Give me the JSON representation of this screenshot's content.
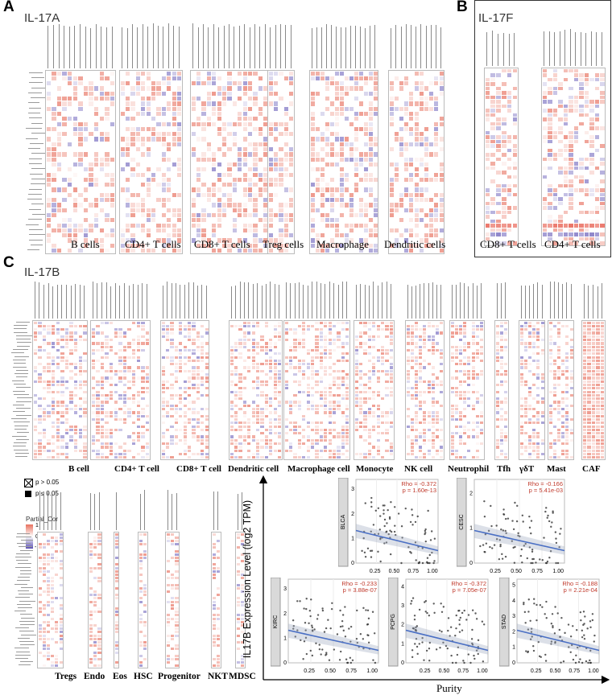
{
  "panels": {
    "A": {
      "letter": "A",
      "title": "IL-17A",
      "groups": [
        "B cells",
        "CD4+ T cells",
        "CD8+ T cells",
        "Treg cells",
        "Macrophage",
        "Dendritic cells"
      ]
    },
    "B": {
      "letter": "B",
      "title": "IL-17F",
      "groups": [
        "CD8+ T cells",
        "CD4+ T cells"
      ]
    },
    "C": {
      "letter": "C",
      "title": "IL-17B",
      "groups_top": [
        "B cell",
        "CD4+ T cell",
        "CD8+ T cell",
        "Dendritic cell",
        "Macrophage cell",
        "Monocyte",
        "NK cell",
        "Neutrophil",
        "Tfh",
        "γδT",
        "Mast",
        "CAF"
      ],
      "groups_bottom": [
        "Tregs",
        "Endo",
        "Eos",
        "HSC",
        "Progenitor",
        "NKT",
        "MDSC"
      ]
    }
  },
  "legend": {
    "p_gt": "p > 0.05",
    "p_le": "p ≤ 0.05",
    "title": "Partial_Cor",
    "ticks": [
      "1",
      "0",
      "-1"
    ],
    "colors": {
      "pos": "#e8715f",
      "mid": "#ffffff",
      "neg": "#5b4fb3"
    }
  },
  "scatter": {
    "y_axis_label": "IL17B Expression Level (log2 TPM)",
    "x_axis_label": "Purity",
    "plots": [
      {
        "cancer": "BLCA",
        "rho": "Rho = -0.372",
        "p": "p = 1.60e-13"
      },
      {
        "cancer": "CESC",
        "rho": "Rho = -0.166",
        "p": "p = 5.41e-03"
      },
      {
        "cancer": "KIRC",
        "rho": "Rho = -0.233",
        "p": "p = 3.88e-07"
      },
      {
        "cancer": "PCPG",
        "rho": "Rho = -0.372",
        "p": "p = 7.05e-07"
      },
      {
        "cancer": "STAD",
        "rho": "Rho = -0.188",
        "p": "p = 2.21e-04"
      }
    ],
    "x_ticks": [
      "0.25",
      "0.50",
      "0.75",
      "1.00"
    ],
    "line_color": "#4a6fc4",
    "rho_color": "#c0392b"
  }
}
